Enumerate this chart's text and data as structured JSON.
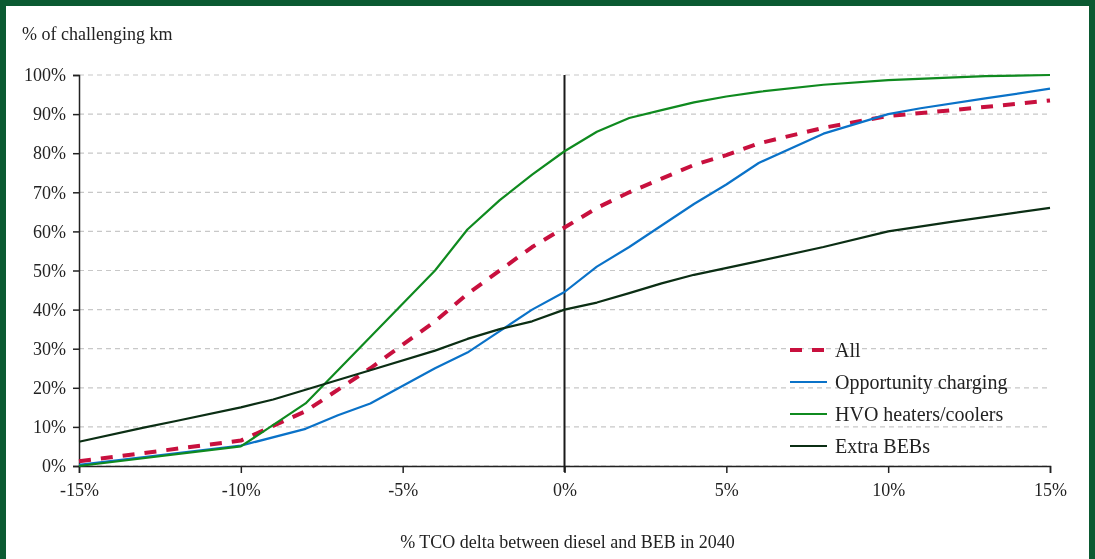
{
  "chart_data": {
    "type": "line",
    "ylabel": "% of challenging  km",
    "xlabel": "% TCO delta between diesel and   BEB in 2040",
    "xlim": [
      -15,
      15
    ],
    "xticks": [
      {
        "value": -15,
        "label": "-15%"
      },
      {
        "value": -10,
        "label": "-10%"
      },
      {
        "value": -5,
        "label": "-5%"
      },
      {
        "value": 0,
        "label": "0%"
      },
      {
        "value": 5,
        "label": "5%"
      },
      {
        "value": 10,
        "label": "10%"
      },
      {
        "value": 15,
        "label": "15%"
      }
    ],
    "ylim": [
      0,
      100
    ],
    "yticks": [
      {
        "value": 0,
        "label": "0%"
      },
      {
        "value": 10,
        "label": "10%"
      },
      {
        "value": 20,
        "label": "20%"
      },
      {
        "value": 30,
        "label": "30%"
      },
      {
        "value": 40,
        "label": "40%"
      },
      {
        "value": 50,
        "label": "50%"
      },
      {
        "value": 60,
        "label": "60%"
      },
      {
        "value": 70,
        "label": "70%"
      },
      {
        "value": 80,
        "label": "80%"
      },
      {
        "value": 90,
        "label": "90%"
      },
      {
        "value": 100,
        "label": "100%"
      }
    ],
    "grid": "y",
    "legend": "bottom right",
    "marker": "none",
    "ref_lines": [
      {
        "axis": "x",
        "value": 0,
        "color": "#1a1a1a"
      }
    ],
    "series": [
      {
        "name": "All",
        "color": "#c8103e",
        "line_style": "dashed",
        "x": [
          -15,
          -10,
          -8,
          -6,
          -4,
          -3,
          -2,
          -1,
          0,
          1,
          2,
          3,
          4,
          5,
          6,
          8,
          10,
          12,
          15
        ],
        "values": [
          1.2,
          6.5,
          14,
          25,
          37,
          44,
          50,
          56,
          61,
          66,
          70,
          73.5,
          77,
          79.5,
          82.5,
          86.5,
          89.5,
          91,
          93.5
        ]
      },
      {
        "name": "Opportunity charging",
        "color": "#0a72c8",
        "line_style": "solid",
        "x": [
          -15,
          -10,
          -8,
          -7,
          -6,
          -4,
          -3,
          -2,
          -1,
          0,
          1,
          2,
          3,
          4,
          5,
          6,
          8,
          10,
          11,
          13,
          15
        ],
        "values": [
          0.3,
          5.2,
          9.5,
          13,
          16,
          25,
          29,
          34.5,
          40,
          44.5,
          51,
          56,
          61.5,
          67,
          72,
          77.5,
          85,
          90,
          91.5,
          94,
          96.5
        ]
      },
      {
        "name": "HVO heaters/coolers",
        "color": "#0f8a1f",
        "line_style": "solid",
        "x": [
          -15,
          -10,
          -8,
          -6,
          -4,
          -3,
          -2,
          -1,
          0,
          1,
          2,
          3,
          4,
          5,
          6,
          8,
          10,
          13,
          15
        ],
        "values": [
          0,
          5,
          16,
          33,
          50,
          60.5,
          68,
          74.5,
          80.5,
          85.5,
          89,
          91,
          93,
          94.5,
          95.7,
          97.5,
          98.7,
          99.7,
          100
        ]
      },
      {
        "name": "Extra BEBs",
        "color": "#0b2e14",
        "line_style": "solid",
        "x": [
          -15,
          -13,
          -12,
          -10,
          -9,
          -8,
          -7,
          -6,
          -4,
          -3,
          -2,
          -1,
          0,
          1,
          2,
          3,
          4,
          6,
          8,
          10,
          12,
          15
        ],
        "values": [
          6.2,
          9.8,
          11.5,
          15,
          17,
          19.5,
          22,
          24.5,
          29.5,
          32.5,
          35,
          37,
          40,
          41.8,
          44.2,
          46.7,
          48.9,
          52.4,
          56,
          60,
          62.5,
          66
        ]
      }
    ]
  }
}
